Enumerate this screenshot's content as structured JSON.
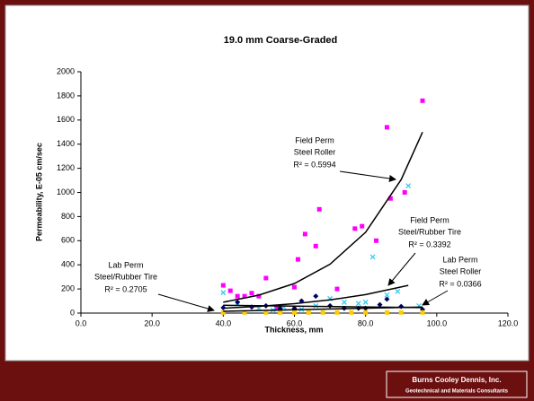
{
  "chart_data": {
    "type": "scatter",
    "title": "19.0 mm Coarse-Graded",
    "xlabel": "Thickness, mm",
    "ylabel": "Permeability, E-05 cm/sec",
    "xlim": [
      0,
      120
    ],
    "ylim": [
      0,
      2000
    ],
    "xticks": [
      {
        "value": 0,
        "label": "0.0"
      },
      {
        "value": 20,
        "label": "20.0"
      },
      {
        "value": 40,
        "label": "40.0"
      },
      {
        "value": 60,
        "label": "60.0"
      },
      {
        "value": 80,
        "label": "80.0"
      },
      {
        "value": 100,
        "label": "100.0"
      },
      {
        "value": 120,
        "label": "120.0"
      }
    ],
    "yticks": [
      0,
      200,
      400,
      600,
      800,
      1000,
      1200,
      1400,
      1600,
      1800,
      2000
    ],
    "series": [
      {
        "label_lines": [
          "Field Perm",
          "Steel Roller"
        ],
        "r2_label": "R² = 0.5994",
        "color": "#ff00ff",
        "marker": "square",
        "x": [
          40,
          42,
          44,
          46,
          48,
          50,
          52,
          55,
          60,
          61,
          63,
          66,
          67,
          72,
          77,
          79,
          83,
          86,
          87,
          91,
          96
        ],
        "values": [
          230,
          185,
          140,
          140,
          165,
          140,
          290,
          40,
          215,
          445,
          655,
          555,
          860,
          200,
          700,
          720,
          600,
          1540,
          950,
          1000,
          1760
        ],
        "trend_x": [
          40,
          50,
          60,
          70,
          80,
          90,
          96
        ],
        "trend_values": [
          90,
          149,
          245,
          405,
          670,
          1107,
          1500
        ]
      },
      {
        "label_lines": [
          "Field Perm",
          "Steel/Rubber Tire"
        ],
        "r2_label": "R² = 0.3392",
        "color": "#33ccee",
        "marker": "x",
        "x": [
          40,
          44,
          50,
          54,
          57,
          62,
          66,
          70,
          74,
          78,
          80,
          82,
          86,
          89,
          92,
          95
        ],
        "values": [
          170,
          80,
          40,
          25,
          50,
          30,
          60,
          120,
          90,
          80,
          90,
          465,
          150,
          180,
          1055,
          60
        ],
        "trend_x": [
          40,
          50,
          60,
          70,
          80,
          92
        ],
        "trend_values": [
          40,
          56,
          78,
          109,
          153,
          230
        ]
      },
      {
        "label_lines": [
          "Lab Perm",
          "Steel Roller"
        ],
        "r2_label": "R² = 0.0366",
        "color": "#000066",
        "marker": "diamond",
        "x": [
          40,
          44,
          48,
          52,
          56,
          60,
          62,
          66,
          70,
          74,
          78,
          80,
          84,
          86,
          90,
          96
        ],
        "values": [
          45,
          90,
          50,
          60,
          40,
          40,
          100,
          140,
          60,
          40,
          40,
          40,
          70,
          115,
          55,
          30
        ],
        "trend_x": [
          40,
          96
        ],
        "trend_values": [
          65,
          45
        ]
      },
      {
        "label_lines": [
          "Lab Perm",
          "Steel/Rubber Tire"
        ],
        "r2_label": "R² = 0.2705",
        "color": "#ffcc00",
        "marker": "square",
        "x": [
          40,
          46,
          52,
          56,
          60,
          64,
          68,
          72,
          76,
          80,
          86,
          90,
          96
        ],
        "values": [
          5,
          5,
          5,
          5,
          5,
          5,
          5,
          5,
          5,
          5,
          5,
          5,
          5
        ],
        "trend_x": [
          40,
          96
        ],
        "trend_values": [
          15,
          50
        ]
      }
    ],
    "footer": {
      "company": "Burns Cooley Dennis, Inc.",
      "tagline": "Geotechnical and Materials Consultants"
    }
  }
}
